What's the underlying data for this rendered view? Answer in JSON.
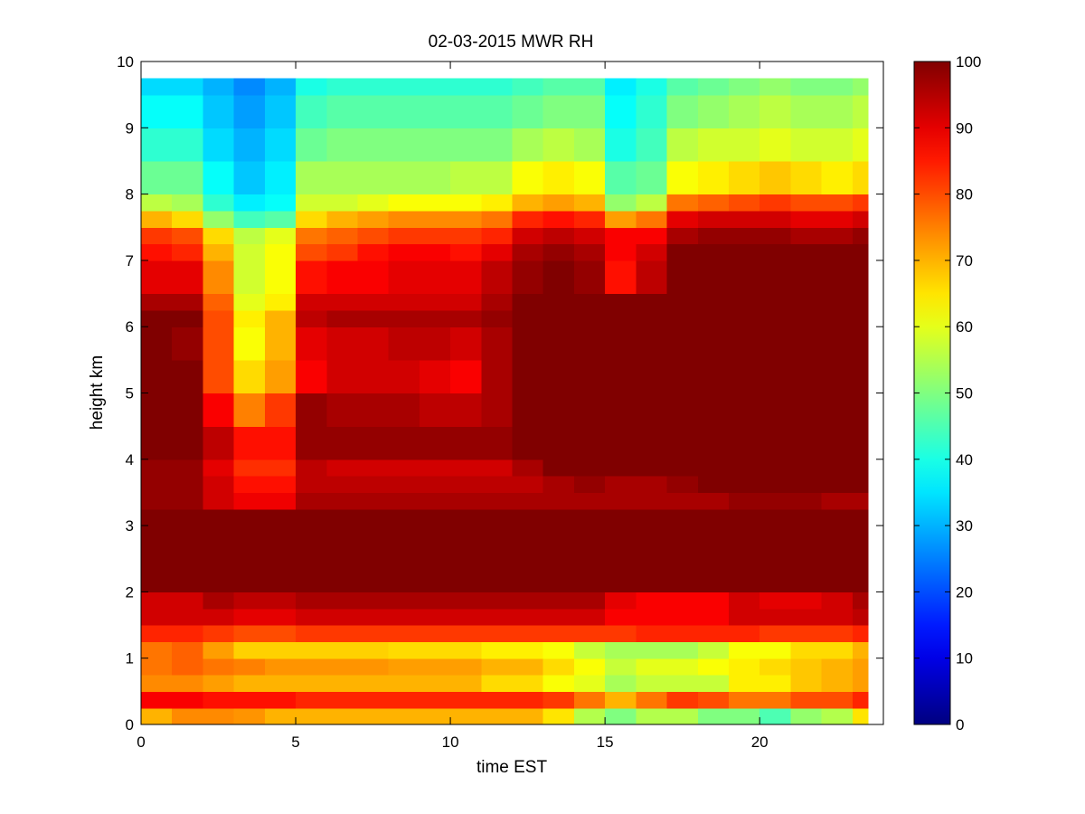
{
  "chart_data": {
    "type": "heatmap",
    "title": "02-03-2015 MWR RH",
    "xlabel": "time EST",
    "ylabel": "height km",
    "xlim": [
      0,
      24
    ],
    "ylim": [
      0,
      10
    ],
    "x_ticks": [
      0,
      5,
      10,
      15,
      20
    ],
    "y_ticks": [
      0,
      1,
      2,
      3,
      4,
      5,
      6,
      7,
      8,
      9,
      10
    ],
    "colorbar": {
      "range": [
        0,
        100
      ],
      "ticks": [
        0,
        10,
        20,
        30,
        40,
        50,
        60,
        70,
        80,
        90,
        100
      ],
      "colormap": "jet"
    },
    "cell_time_step": 1,
    "data_time_extent": [
      0,
      23.5
    ],
    "data_height_extent": [
      0,
      9.75
    ],
    "profile_times": [
      0,
      1,
      2,
      3,
      4,
      5,
      6,
      7,
      8,
      9,
      10,
      11,
      12,
      13,
      14,
      15,
      16,
      17,
      18,
      19,
      20,
      21,
      22,
      23
    ],
    "profile_heights": [
      0,
      0.25,
      0.5,
      0.75,
      1.0,
      1.25,
      1.5,
      1.75,
      2.0,
      2.5,
      3.0,
      3.25,
      3.5,
      3.75,
      4.0,
      4.5,
      5.0,
      5.5,
      6.0,
      6.25,
      6.5,
      7.0,
      7.25,
      7.5,
      7.75,
      8.0,
      8.5,
      9.0,
      9.5,
      9.75
    ],
    "rh_values": [
      [
        70,
        74,
        74,
        73,
        70,
        70,
        70,
        70,
        70,
        70,
        70,
        70,
        70,
        65,
        55,
        50,
        55,
        55,
        50,
        50,
        45,
        52,
        55,
        65
      ],
      [
        88,
        88,
        86,
        86,
        86,
        84,
        84,
        84,
        84,
        84,
        84,
        84,
        84,
        82,
        76,
        70,
        76,
        82,
        80,
        76,
        76,
        80,
        80,
        84
      ],
      [
        74,
        74,
        72,
        70,
        70,
        70,
        70,
        70,
        70,
        70,
        70,
        66,
        66,
        62,
        60,
        54,
        57,
        57,
        57,
        64,
        64,
        68,
        70,
        72
      ],
      [
        76,
        78,
        76,
        75,
        73,
        73,
        73,
        73,
        72,
        72,
        72,
        70,
        70,
        66,
        62,
        57,
        60,
        60,
        62,
        64,
        66,
        68,
        70,
        72
      ],
      [
        76,
        78,
        72,
        67,
        67,
        67,
        67,
        67,
        66,
        66,
        66,
        64,
        64,
        62,
        57,
        54,
        54,
        54,
        57,
        62,
        62,
        66,
        66,
        70
      ],
      [
        84,
        84,
        82,
        80,
        80,
        82,
        82,
        82,
        82,
        82,
        82,
        82,
        82,
        82,
        82,
        82,
        84,
        84,
        84,
        84,
        82,
        82,
        82,
        84
      ],
      [
        92,
        92,
        92,
        90,
        90,
        92,
        92,
        92,
        92,
        92,
        92,
        92,
        92,
        92,
        92,
        88,
        88,
        88,
        88,
        92,
        92,
        92,
        92,
        94
      ],
      [
        92,
        92,
        96,
        94,
        94,
        96,
        96,
        96,
        96,
        96,
        96,
        96,
        96,
        96,
        96,
        90,
        88,
        88,
        88,
        92,
        90,
        90,
        92,
        96
      ],
      [
        100,
        100,
        100,
        100,
        100,
        100,
        100,
        100,
        100,
        100,
        100,
        100,
        100,
        100,
        100,
        100,
        100,
        100,
        100,
        100,
        100,
        100,
        100,
        100
      ],
      [
        100,
        100,
        100,
        100,
        100,
        100,
        100,
        100,
        100,
        100,
        100,
        100,
        100,
        100,
        100,
        100,
        100,
        100,
        100,
        100,
        100,
        100,
        100,
        100
      ],
      [
        100,
        100,
        100,
        100,
        100,
        100,
        100,
        100,
        100,
        100,
        100,
        100,
        100,
        100,
        100,
        100,
        100,
        100,
        100,
        100,
        100,
        100,
        100,
        100
      ],
      [
        98,
        98,
        92,
        89,
        89,
        96,
        96,
        96,
        96,
        96,
        96,
        96,
        96,
        96,
        96,
        96,
        96,
        96,
        96,
        98,
        98,
        98,
        96,
        96
      ],
      [
        98,
        98,
        92,
        86,
        86,
        94,
        94,
        94,
        94,
        94,
        94,
        94,
        94,
        96,
        98,
        96,
        96,
        98,
        100,
        100,
        100,
        100,
        100,
        100
      ],
      [
        98,
        98,
        90,
        83,
        83,
        94,
        92,
        92,
        92,
        92,
        92,
        92,
        96,
        100,
        100,
        100,
        100,
        100,
        100,
        100,
        100,
        100,
        100,
        100
      ],
      [
        100,
        100,
        94,
        86,
        86,
        98,
        98,
        98,
        98,
        98,
        98,
        98,
        100,
        100,
        100,
        100,
        100,
        100,
        100,
        100,
        100,
        100,
        100,
        100
      ],
      [
        100,
        100,
        88,
        75,
        82,
        98,
        96,
        96,
        96,
        94,
        94,
        96,
        100,
        100,
        100,
        100,
        100,
        100,
        100,
        100,
        100,
        100,
        100,
        100
      ],
      [
        100,
        100,
        80,
        66,
        72,
        88,
        92,
        92,
        92,
        90,
        88,
        96,
        100,
        100,
        100,
        100,
        100,
        100,
        100,
        100,
        100,
        100,
        100,
        100
      ],
      [
        100,
        98,
        80,
        62,
        70,
        90,
        92,
        92,
        94,
        94,
        92,
        96,
        100,
        100,
        100,
        100,
        100,
        100,
        100,
        100,
        100,
        100,
        100,
        100
      ],
      [
        100,
        100,
        80,
        64,
        70,
        94,
        96,
        96,
        96,
        96,
        96,
        98,
        100,
        100,
        100,
        100,
        100,
        100,
        100,
        100,
        100,
        100,
        100,
        100
      ],
      [
        96,
        96,
        78,
        60,
        64,
        92,
        92,
        92,
        92,
        92,
        92,
        96,
        100,
        100,
        100,
        100,
        100,
        100,
        100,
        100,
        100,
        100,
        100,
        100
      ],
      [
        90,
        90,
        74,
        58,
        62,
        86,
        88,
        88,
        90,
        90,
        90,
        94,
        98,
        100,
        98,
        86,
        94,
        100,
        100,
        100,
        100,
        100,
        100,
        100
      ],
      [
        86,
        84,
        70,
        58,
        62,
        80,
        82,
        86,
        88,
        88,
        86,
        90,
        96,
        98,
        96,
        88,
        92,
        100,
        100,
        100,
        100,
        100,
        100,
        100
      ],
      [
        82,
        80,
        66,
        56,
        60,
        76,
        78,
        80,
        82,
        82,
        82,
        84,
        92,
        94,
        92,
        88,
        88,
        96,
        98,
        98,
        98,
        96,
        96,
        98
      ],
      [
        70,
        66,
        52,
        44,
        46,
        66,
        70,
        72,
        74,
        74,
        74,
        76,
        84,
        86,
        84,
        72,
        76,
        90,
        92,
        92,
        92,
        90,
        90,
        92
      ],
      [
        56,
        54,
        42,
        36,
        38,
        58,
        58,
        60,
        62,
        62,
        62,
        64,
        70,
        72,
        70,
        52,
        56,
        76,
        78,
        80,
        82,
        80,
        80,
        82
      ],
      [
        48,
        48,
        38,
        32,
        36,
        54,
        54,
        54,
        54,
        54,
        56,
        56,
        62,
        64,
        62,
        46,
        48,
        62,
        64,
        66,
        68,
        66,
        64,
        66
      ],
      [
        42,
        42,
        34,
        30,
        34,
        48,
        50,
        50,
        50,
        50,
        50,
        50,
        54,
        56,
        54,
        40,
        44,
        56,
        58,
        58,
        60,
        58,
        58,
        60
      ],
      [
        38,
        38,
        32,
        28,
        32,
        44,
        46,
        46,
        46,
        46,
        46,
        46,
        48,
        50,
        50,
        38,
        42,
        50,
        52,
        54,
        56,
        54,
        54,
        56
      ],
      [
        34,
        34,
        30,
        26,
        30,
        40,
        42,
        42,
        42,
        42,
        42,
        42,
        44,
        46,
        46,
        36,
        40,
        46,
        48,
        50,
        52,
        50,
        50,
        52
      ],
      [
        32,
        32,
        28,
        24,
        28,
        38,
        40,
        40,
        40,
        40,
        40,
        40,
        42,
        44,
        44,
        36,
        38,
        44,
        46,
        48,
        50,
        48,
        48,
        50
      ]
    ]
  }
}
